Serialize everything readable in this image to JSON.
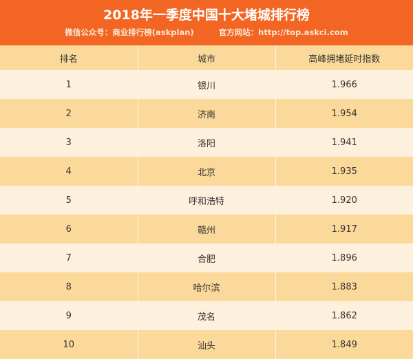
{
  "title": "2018年一季度中国十大堵城排行榜",
  "wechat": "微信公众号：商业排行榜(askplan)",
  "website": "官方网站：http://top.askci.com",
  "columns": [
    "排名",
    "城市",
    "高峰拥堵延时指数"
  ],
  "rows": [
    [
      "1",
      "银川",
      "1.966"
    ],
    [
      "2",
      "济南",
      "1.954"
    ],
    [
      "3",
      "洛阳",
      "1.941"
    ],
    [
      "4",
      "北京",
      "1.935"
    ],
    [
      "5",
      "呼和浩特",
      "1.920"
    ],
    [
      "6",
      "赣州",
      "1.917"
    ],
    [
      "7",
      "合肥",
      "1.896"
    ],
    [
      "8",
      "哈尔滨",
      "1.883"
    ],
    [
      "9",
      "茂名",
      "1.862"
    ],
    [
      "10",
      "汕头",
      "1.849"
    ]
  ],
  "colors": {
    "banner": "#f26522",
    "row_dark": "#fbd99a",
    "row_light": "#fdf0dc"
  }
}
